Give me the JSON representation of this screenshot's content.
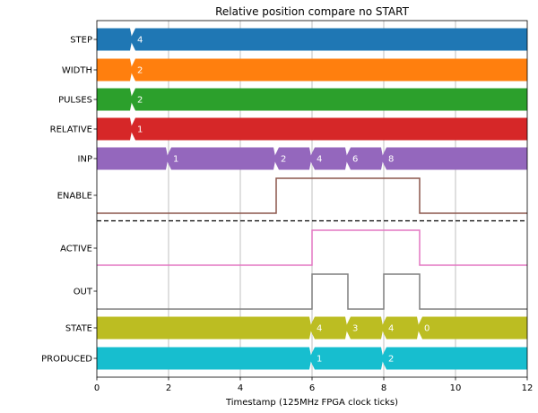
{
  "chart_data": {
    "type": "timing-diagram",
    "title": "Relative position compare no START",
    "xlabel": "Timestamp (125MHz FPGA clock ticks)",
    "xlim": [
      0,
      12
    ],
    "xticks": [
      0,
      2,
      4,
      6,
      8,
      10,
      12
    ],
    "grid": "vertical",
    "signals": [
      {
        "name": "STEP",
        "kind": "bus",
        "color": "#1f77b4",
        "segments": [
          {
            "start": 1,
            "end": 12,
            "value": "4"
          }
        ]
      },
      {
        "name": "WIDTH",
        "kind": "bus",
        "color": "#ff7f0e",
        "segments": [
          {
            "start": 1,
            "end": 12,
            "value": "2"
          }
        ]
      },
      {
        "name": "PULSES",
        "kind": "bus",
        "color": "#2ca02c",
        "segments": [
          {
            "start": 1,
            "end": 12,
            "value": "2"
          }
        ]
      },
      {
        "name": "RELATIVE",
        "kind": "bus",
        "color": "#d62728",
        "segments": [
          {
            "start": 1,
            "end": 12,
            "value": "1"
          }
        ]
      },
      {
        "name": "INP",
        "kind": "bus",
        "color": "#9467bd",
        "segments": [
          {
            "start": 2,
            "end": 5,
            "value": "1"
          },
          {
            "start": 5,
            "end": 6,
            "value": "2"
          },
          {
            "start": 6,
            "end": 7,
            "value": "4"
          },
          {
            "start": 7,
            "end": 8,
            "value": "6"
          },
          {
            "start": 8,
            "end": 12,
            "value": "8"
          }
        ]
      },
      {
        "name": "ENABLE",
        "kind": "bit",
        "color": "#8c564b",
        "transitions": [
          [
            0,
            0
          ],
          [
            5,
            1
          ],
          [
            9,
            0
          ]
        ]
      },
      {
        "name": "ACTIVE",
        "kind": "bit",
        "color": "#e377c2",
        "transitions": [
          [
            0,
            0
          ],
          [
            6,
            1
          ],
          [
            9,
            0
          ]
        ]
      },
      {
        "name": "OUT",
        "kind": "bit",
        "color": "#7f7f7f",
        "transitions": [
          [
            0,
            0
          ],
          [
            6,
            1
          ],
          [
            7,
            0
          ],
          [
            8,
            1
          ],
          [
            9,
            0
          ]
        ]
      },
      {
        "name": "STATE",
        "kind": "bus",
        "color": "#bcbd22",
        "segments": [
          {
            "start": 6,
            "end": 7,
            "value": "4"
          },
          {
            "start": 7,
            "end": 8,
            "value": "3"
          },
          {
            "start": 8,
            "end": 9,
            "value": "4"
          },
          {
            "start": 9,
            "end": 12,
            "value": "0"
          }
        ]
      },
      {
        "name": "PRODUCED",
        "kind": "bus",
        "color": "#17becf",
        "segments": [
          {
            "start": 6,
            "end": 8,
            "value": "1"
          },
          {
            "start": 8,
            "end": 12,
            "value": "2"
          }
        ]
      }
    ],
    "separator_after": "ENABLE"
  }
}
